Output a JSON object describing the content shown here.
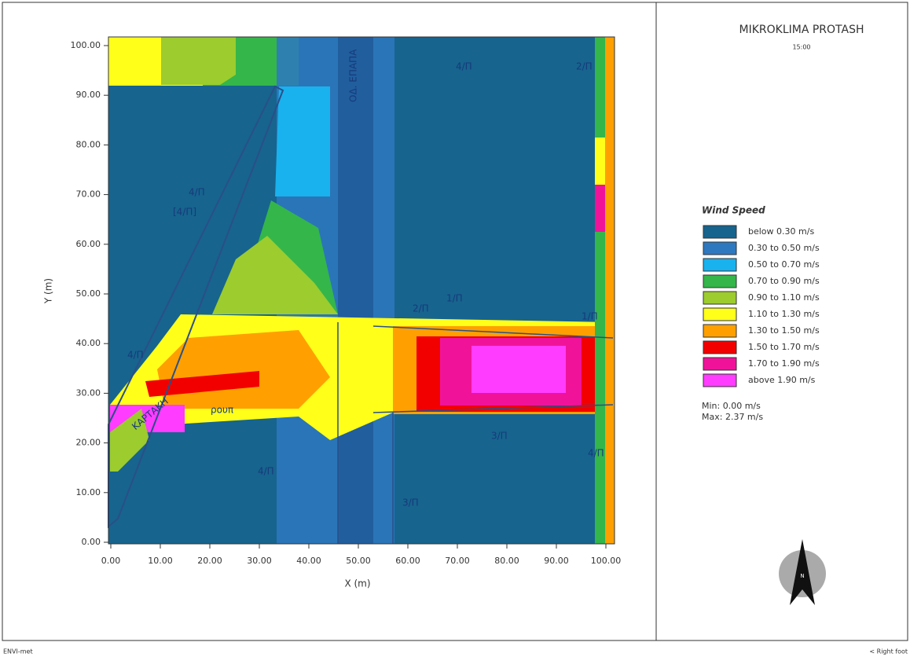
{
  "header": {
    "title": "MIKROKLIMA PROTASH",
    "time": "15:00"
  },
  "map": {
    "xlabel": "X (m)",
    "ylabel": "Y (m)",
    "xlim": [
      0,
      100
    ],
    "ylim": [
      0,
      100
    ],
    "xticks": [
      {
        "value": 0,
        "label": "0.00"
      },
      {
        "value": 10,
        "label": "10.00"
      },
      {
        "value": 20,
        "label": "20.00"
      },
      {
        "value": 30,
        "label": "30.00"
      },
      {
        "value": 40,
        "label": "40.00"
      },
      {
        "value": 50,
        "label": "50.00"
      },
      {
        "value": 60,
        "label": "60.00"
      },
      {
        "value": 70,
        "label": "70.00"
      },
      {
        "value": 80,
        "label": "80.00"
      },
      {
        "value": 90,
        "label": "90.00"
      },
      {
        "value": 100,
        "label": "100.00"
      }
    ],
    "yticks": [
      {
        "value": 0,
        "label": "0.00"
      },
      {
        "value": 10,
        "label": "10.00"
      },
      {
        "value": 20,
        "label": "20.00"
      },
      {
        "value": 30,
        "label": "30.00"
      },
      {
        "value": 40,
        "label": "40.00"
      },
      {
        "value": 50,
        "label": "50.00"
      },
      {
        "value": 60,
        "label": "60.00"
      },
      {
        "value": 70,
        "label": "70.00"
      },
      {
        "value": 80,
        "label": "80.00"
      },
      {
        "value": 90,
        "label": "90.00"
      },
      {
        "value": 100,
        "label": "100.00"
      }
    ],
    "labels": [
      "4/П",
      "2/П",
      "4/П",
      "[4/П]",
      "2/П",
      "1/П",
      "1/П",
      "4/П",
      "3/П",
      "4/П",
      "4/П",
      "3/П",
      "ΟΔ. ΕΠΑΠΑ",
      "ΚΑΡΤΑΚΗ",
      "ρουπ"
    ]
  },
  "legend": {
    "title": "Wind Speed",
    "items": [
      {
        "label": "below 0.30 m/s",
        "color": "#17648e"
      },
      {
        "label": "0.30 to 0.50 m/s",
        "color": "#2e78c0"
      },
      {
        "label": "0.50 to 0.70 m/s",
        "color": "#19b2ee"
      },
      {
        "label": "0.70 to 0.90 m/s",
        "color": "#34b64a"
      },
      {
        "label": "0.90 to 1.10 m/s",
        "color": "#9ccc2e"
      },
      {
        "label": "1.10 to 1.30 m/s",
        "color": "#ffff1a"
      },
      {
        "label": "1.30 to 1.50 m/s",
        "color": "#ffa000"
      },
      {
        "label": "1.50 to 1.70 m/s",
        "color": "#f20000"
      },
      {
        "label": "1.70 to 1.90 m/s",
        "color": "#f0139a"
      },
      {
        "label": "above 1.90 m/s",
        "color": "#ff3cff"
      }
    ],
    "min": "Min: 0.00 m/s",
    "max": "Max: 2.37 m/s"
  },
  "north": "N",
  "footer": {
    "left": "ENVI-met",
    "right": "< Right foot"
  }
}
